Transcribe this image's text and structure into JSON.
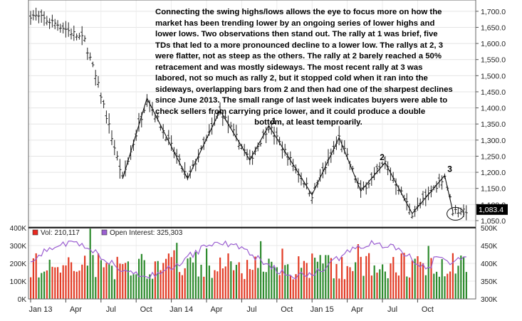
{
  "annotation": {
    "lines": [
      "Connecting the swing highs/lows allows the eye to focus more on how the",
      "market has been trending lower by an ongoing series of lower highs and",
      "lower lows.  Two observations then stand out.  The rally at 1 was brief, five",
      "TDs that led to a more pronounced decline to a lower low.  The rallys at 2, 3",
      "were flatter, not as steep as the others.  The rally at 2 barely reached a 50%",
      "retracement and was mostly sideways.   The most recent rally at 3 was",
      "labored, not so much as rally 2, but it stopped cold when it ran into the",
      "sideways, overlapping bars from 2 and then had one of the sharpest declines",
      "since June 2013.  The small range of last week indicates buyers were able to",
      "check sellers from carrying price lower, and it could produce a double"
    ],
    "last_line": "bottom, at least temproarily."
  },
  "chart_data": {
    "type": "bar",
    "price_axis": {
      "ticks": [
        1050,
        1100,
        1150,
        1200,
        1250,
        1300,
        1350,
        1400,
        1450,
        1500,
        1550,
        1600,
        1650,
        1700
      ],
      "tick_labels": [
        "1,050.0",
        "1,100.0",
        "1,150.0",
        "1,200.0",
        "1,250.0",
        "1,300.0",
        "1,350.0",
        "1,400.0",
        "1,450.0",
        "1,500.0",
        "1,550.0",
        "1,600.0",
        "1,650.0",
        "1,700.0"
      ],
      "range": [
        1030,
        1735
      ]
    },
    "last_price_label": "1,083.4",
    "last_price": 1083.4,
    "x_labels": [
      "Jan 13",
      "Apr",
      "Jul",
      "Oct",
      "Jan 14",
      "Apr",
      "Jul",
      "Oct",
      "Jan 15",
      "Apr",
      "Jul",
      "Oct"
    ],
    "swing_labels": [
      {
        "text": "1",
        "week": 89,
        "price": 1350
      },
      {
        "text": "2",
        "week": 129,
        "price": 1238
      },
      {
        "text": "3",
        "week": 154,
        "price": 1201
      }
    ],
    "swing_line": [
      {
        "week": 34,
        "price": 1180
      },
      {
        "week": 43,
        "price": 1430
      },
      {
        "week": 58,
        "price": 1180
      },
      {
        "week": 70,
        "price": 1392
      },
      {
        "week": 81,
        "price": 1238
      },
      {
        "week": 88,
        "price": 1345
      },
      {
        "week": 104,
        "price": 1130
      },
      {
        "week": 114,
        "price": 1308
      },
      {
        "week": 122,
        "price": 1142
      },
      {
        "week": 131,
        "price": 1230
      },
      {
        "week": 141,
        "price": 1072
      },
      {
        "week": 153,
        "price": 1190
      },
      {
        "week": 156,
        "price": 1080
      }
    ],
    "circle": {
      "week": 157,
      "price": 1080
    },
    "volume": {
      "legend": [
        {
          "text": "Vol: 210,117",
          "color": "#e8271f"
        },
        {
          "text": "Open Interest: 325,303",
          "color": "#9b5fd1"
        }
      ],
      "left_ticks": [
        0,
        100,
        200,
        300,
        400
      ],
      "left_labels": [
        "0K",
        "100K",
        "200K",
        "300K",
        "400K"
      ],
      "right_ticks": [
        300,
        350,
        400,
        450,
        500
      ],
      "right_labels": [
        "300K",
        "350K",
        "400K",
        "450K",
        "500K"
      ]
    }
  }
}
